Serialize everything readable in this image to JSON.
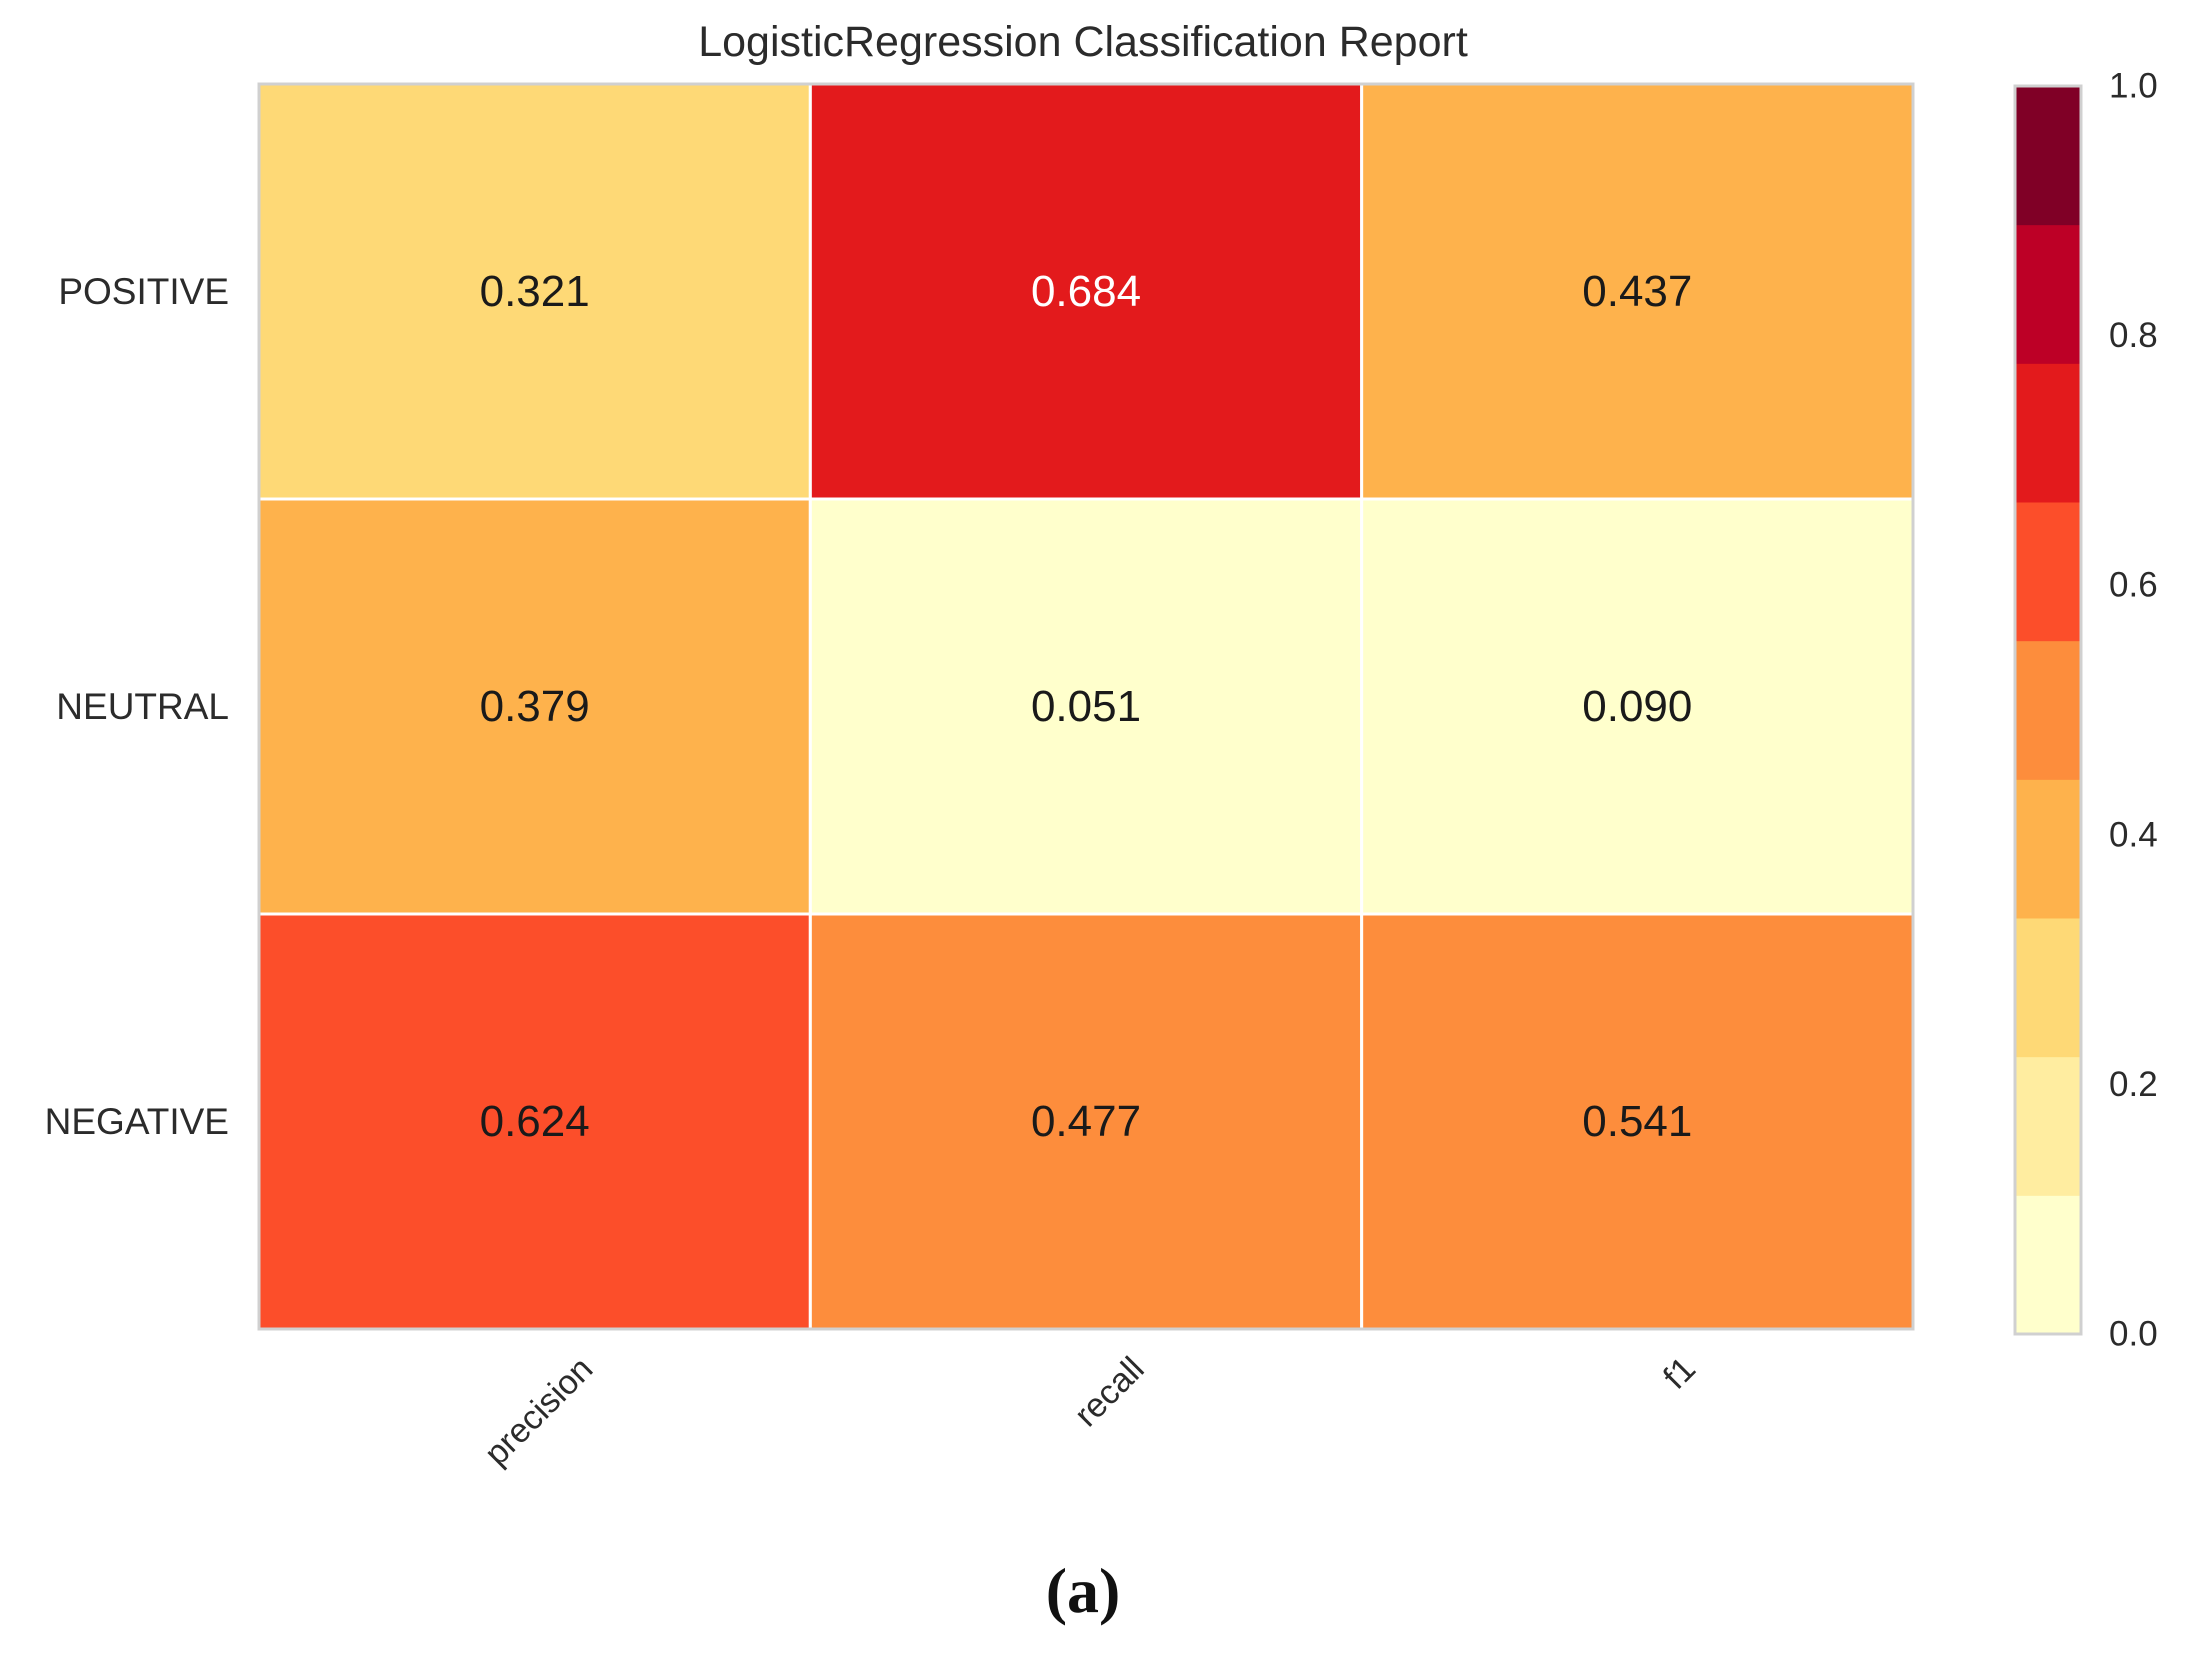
{
  "chart_data": {
    "type": "heatmap",
    "title": "LogisticRegression Classification Report",
    "rows": [
      "POSITIVE",
      "NEUTRAL",
      "NEGATIVE"
    ],
    "columns": [
      "precision",
      "recall",
      "f1"
    ],
    "values": [
      [
        0.321,
        0.684,
        0.437
      ],
      [
        0.379,
        0.051,
        0.09
      ],
      [
        0.624,
        0.477,
        0.541
      ]
    ],
    "value_labels": [
      [
        "0.321",
        "0.684",
        "0.437"
      ],
      [
        "0.379",
        "0.051",
        "0.090"
      ],
      [
        "0.624",
        "0.477",
        "0.541"
      ]
    ],
    "colorbar": {
      "range": [
        0.0,
        1.0
      ],
      "tick_labels": [
        "0.0",
        "0.2",
        "0.4",
        "0.6",
        "0.8",
        "1.0"
      ],
      "colormap": "YlOrRd",
      "bins": [
        "#ffffcc",
        "#ffeda0",
        "#fed976",
        "#feb24c",
        "#fd8d3c",
        "#fc4e2a",
        "#e31a1c",
        "#bd0026",
        "#800026"
      ]
    },
    "grid": false
  },
  "panel_label": "(a)"
}
